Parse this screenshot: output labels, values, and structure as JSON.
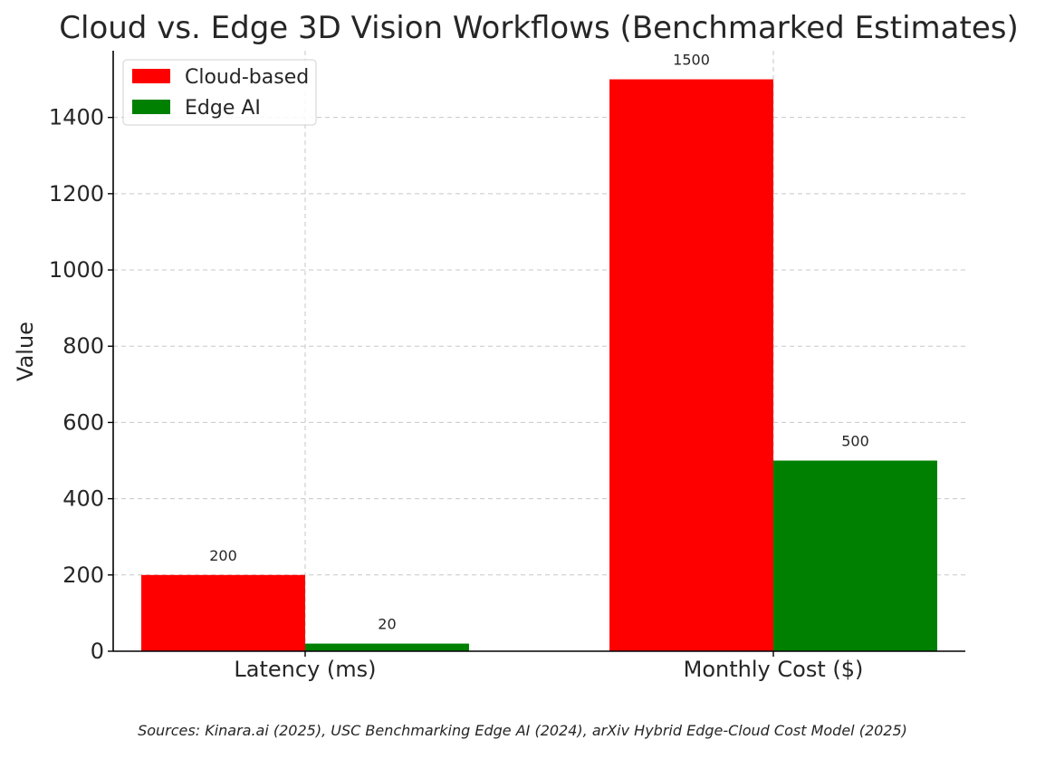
{
  "chart_data": {
    "type": "bar",
    "title": "Cloud vs. Edge 3D Vision Workflows (Benchmarked Estimates)",
    "xlabel": "",
    "ylabel": "Value",
    "categories": [
      "Latency (ms)",
      "Monthly Cost ($)"
    ],
    "series": [
      {
        "name": "Cloud-based",
        "values": [
          200,
          1500
        ],
        "color": "#ff0000"
      },
      {
        "name": "Edge AI",
        "values": [
          20,
          500
        ],
        "color": "#008000"
      }
    ],
    "ylim": [
      0,
      1575
    ],
    "yticks": [
      0,
      200,
      400,
      600,
      800,
      1000,
      1200,
      1400
    ],
    "grid": true,
    "legend_position": "top-left",
    "data_labels": true
  },
  "caption": "Sources: Kinara.ai (2025), USC Benchmarking Edge AI (2024), arXiv Hybrid Edge-Cloud Cost Model (2025)"
}
